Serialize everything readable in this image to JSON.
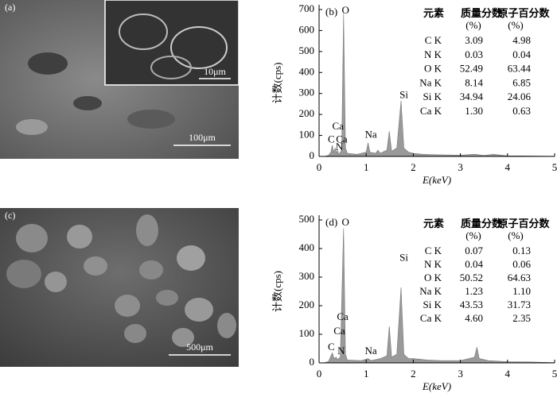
{
  "images": [
    {
      "label": "(a)",
      "scale": "100μm",
      "inset_scale": "10μm"
    },
    {
      "label": "(c)",
      "scale": "500μm"
    }
  ],
  "chart_data": [
    {
      "type": "area",
      "panel_label": "(b)",
      "color": "#9a9a9a",
      "x": [
        0,
        0.1,
        0.2,
        0.25,
        0.28,
        0.31,
        0.34,
        0.37,
        0.39,
        0.42,
        0.48,
        0.52,
        0.56,
        0.6,
        0.8,
        1.0,
        1.04,
        1.08,
        1.2,
        1.25,
        1.3,
        1.44,
        1.49,
        1.54,
        1.65,
        1.74,
        1.8,
        1.9,
        2.0,
        2.2,
        2.5,
        3.0,
        3.3,
        3.5,
        3.7,
        4.0,
        4.5,
        5
      ],
      "values": [
        0,
        0,
        5,
        20,
        53,
        20,
        40,
        15,
        30,
        10,
        30,
        680,
        40,
        15,
        10,
        20,
        65,
        20,
        15,
        30,
        15,
        30,
        120,
        25,
        40,
        265,
        40,
        20,
        15,
        10,
        8,
        6,
        10,
        5,
        10,
        3,
        2,
        1
      ],
      "xlim": [
        0,
        5
      ],
      "ylim": [
        0,
        700
      ],
      "xticks": [
        0,
        1,
        2,
        3,
        4,
        5
      ],
      "yticks": [
        0,
        100,
        200,
        300,
        400,
        500,
        600,
        700
      ],
      "xlabel": "E(keV)",
      "ylabel": "计数(cps)",
      "annotations": [
        {
          "text": "C",
          "x": 0.26,
          "y": 78
        },
        {
          "text": "Ca",
          "x": 0.48,
          "y": 78
        },
        {
          "text": "Ca",
          "x": 0.4,
          "y": 140
        },
        {
          "text": "N",
          "x": 0.43,
          "y": 42
        },
        {
          "text": "Na",
          "x": 1.1,
          "y": 100
        },
        {
          "text": "O",
          "x": 0.56,
          "y": 693
        },
        {
          "text": "Si",
          "x": 1.8,
          "y": 290
        }
      ],
      "table": {
        "header": [
          "元素",
          "质量分数",
          "原子百分数"
        ],
        "header_units": [
          "(%)",
          "(%)"
        ],
        "rows": [
          [
            "C K",
            "3.09",
            "4.98"
          ],
          [
            "N K",
            "0.03",
            "0.04"
          ],
          [
            "O K",
            "52.49",
            "63.44"
          ],
          [
            "Na K",
            "8.14",
            "6.85"
          ],
          [
            "Si K",
            "34.94",
            "24.06"
          ],
          [
            "Ca K",
            "1.30",
            "0.63"
          ]
        ]
      }
    },
    {
      "type": "area",
      "panel_label": "(d)",
      "color": "#9a9a9a",
      "x": [
        0,
        0.1,
        0.2,
        0.28,
        0.32,
        0.36,
        0.39,
        0.45,
        0.52,
        0.56,
        0.6,
        0.9,
        1.04,
        1.1,
        1.3,
        1.44,
        1.49,
        1.54,
        1.65,
        1.74,
        1.8,
        1.9,
        2.0,
        2.3,
        2.6,
        3.0,
        3.3,
        3.35,
        3.4,
        3.6,
        4.0,
        4.5,
        5
      ],
      "values": [
        0,
        0,
        5,
        35,
        15,
        20,
        12,
        20,
        470,
        30,
        10,
        8,
        15,
        8,
        15,
        25,
        128,
        20,
        30,
        264,
        30,
        15,
        15,
        10,
        8,
        8,
        20,
        55,
        15,
        8,
        4,
        3,
        1
      ],
      "xlim": [
        0,
        5
      ],
      "ylim": [
        0,
        500
      ],
      "xticks": [
        0,
        1,
        2,
        3,
        4,
        5
      ],
      "yticks": [
        0,
        100,
        200,
        300,
        400,
        500
      ],
      "xlabel": "E(keV)",
      "ylabel": "计数(cps)",
      "annotations": [
        {
          "text": "C",
          "x": 0.26,
          "y": 53
        },
        {
          "text": "Ca",
          "x": 0.43,
          "y": 108
        },
        {
          "text": "Ca",
          "x": 0.5,
          "y": 158
        },
        {
          "text": "N",
          "x": 0.47,
          "y": 39
        },
        {
          "text": "Na",
          "x": 1.1,
          "y": 39
        },
        {
          "text": "O",
          "x": 0.56,
          "y": 489
        },
        {
          "text": "Si",
          "x": 1.8,
          "y": 365
        }
      ],
      "table": {
        "header": [
          "元素",
          "质量分数",
          "原子百分数"
        ],
        "header_units": [
          "(%)",
          "(%)"
        ],
        "rows": [
          [
            "C K",
            "0.07",
            "0.13"
          ],
          [
            "N K",
            "0.04",
            "0.06"
          ],
          [
            "O K",
            "50.52",
            "64.63"
          ],
          [
            "Na K",
            "1.23",
            "1.10"
          ],
          [
            "Si K",
            "43.53",
            "31.73"
          ],
          [
            "Ca K",
            "4.60",
            "2.35"
          ]
        ]
      }
    }
  ]
}
